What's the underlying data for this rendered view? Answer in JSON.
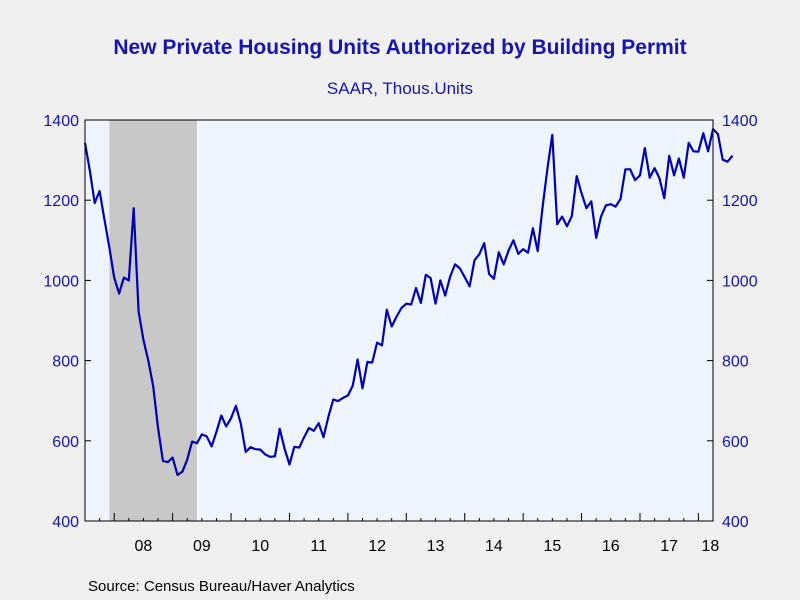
{
  "chart_data": {
    "type": "line",
    "title": "New Private Housing Units Authorized by Building Permit",
    "subtitle": "SAAR, Thous.Units",
    "source": "Source:  Census Bureau/Haver Analytics",
    "ylim": [
      400,
      1400
    ],
    "yticks": [
      400,
      600,
      800,
      1000,
      1200,
      1400
    ],
    "ytick_labels": [
      "400",
      "600",
      "800",
      "1000",
      "1200",
      "1400"
    ],
    "xlim": [
      "2007-07",
      "2018-04"
    ],
    "xtick_labels": [
      "08",
      "09",
      "10",
      "11",
      "12",
      "13",
      "14",
      "15",
      "16",
      "17",
      "18"
    ],
    "grid": false,
    "recession": {
      "start": "2007-12",
      "end": "2009-06"
    },
    "colors": {
      "line": "#0000b0",
      "recession": "#c8c8c8",
      "plot_bg": "#eef5ff",
      "text": "#1515b0"
    },
    "series": [
      {
        "start": "2007-07",
        "values": [
          1343,
          1273,
          1193,
          1223,
          1151,
          1083,
          1007,
          967,
          1007,
          1000,
          1180,
          922,
          852,
          800,
          736,
          633,
          550,
          547,
          558,
          515,
          523,
          553,
          598,
          594,
          616,
          611,
          586,
          622,
          663,
          636,
          656,
          687,
          643,
          572,
          584,
          579,
          578,
          566,
          560,
          561,
          630,
          580,
          541,
          585,
          583,
          609,
          632,
          625,
          644,
          609,
          660,
          703,
          699,
          707,
          713,
          738,
          803,
          731,
          797,
          795,
          845,
          838,
          927,
          885,
          910,
          931,
          942,
          940,
          981,
          944,
          1014,
          1006,
          942,
          1000,
          962,
          1009,
          1040,
          1030,
          1008,
          985,
          1050,
          1065,
          1093,
          1016,
          1004,
          1070,
          1040,
          1074,
          1100,
          1066,
          1078,
          1069,
          1130,
          1073,
          1183,
          1280,
          1363,
          1140,
          1159,
          1135,
          1160,
          1260,
          1217,
          1180,
          1197,
          1106,
          1159,
          1187,
          1190,
          1184,
          1203,
          1277,
          1277,
          1250,
          1262,
          1330,
          1256,
          1280,
          1255,
          1205,
          1311,
          1262,
          1304,
          1256,
          1343,
          1322,
          1321,
          1367,
          1322,
          1377,
          1365,
          1301,
          1296,
          1311
        ]
      }
    ]
  }
}
